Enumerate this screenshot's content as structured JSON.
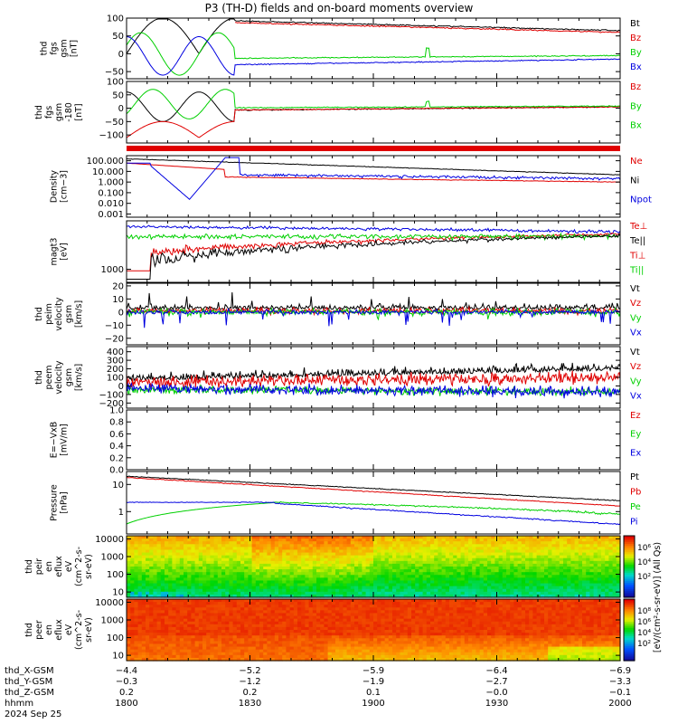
{
  "title": "P3 (TH-D) fields and on-board moments overview",
  "colors": {
    "black": "#000000",
    "red": "#e00000",
    "green": "#00d000",
    "blue": "#0000e0"
  },
  "chart_data": [
    {
      "type": "line",
      "ylabel": [
        "thd",
        "fgs",
        "gsm",
        "[nT]"
      ],
      "yticks": [
        "100",
        "50",
        "0",
        "−50"
      ],
      "ylim": [
        -70,
        100
      ],
      "legend": [
        {
          "text": "Bt",
          "color": "#000000"
        },
        {
          "text": "Bz",
          "color": "#e00000"
        },
        {
          "text": "By",
          "color": "#00d000"
        },
        {
          "text": "Bx",
          "color": "#0000e0"
        }
      ]
    },
    {
      "type": "line",
      "ylabel": [
        "thd",
        "fgs",
        "gsm",
        "-180",
        "[nT]"
      ],
      "yticks": [
        "100",
        "50",
        "0",
        "−50",
        "−100"
      ],
      "ylim": [
        -130,
        100
      ],
      "legend": [
        {
          "text": "Bz",
          "color": "#e00000"
        },
        {
          "text": "By",
          "color": "#00d000"
        },
        {
          "text": "Bx",
          "color": "#00d000"
        }
      ]
    },
    {
      "type": "line",
      "ylabel": [
        "Density",
        "[cm−3]"
      ],
      "yticks": [
        "100.000",
        "10.000",
        "1.000",
        "0.100",
        "0.010",
        "0.001"
      ],
      "ylim": [
        0.0005,
        300
      ],
      "scale": "log",
      "legend": [
        {
          "text": "Ne",
          "color": "#e00000"
        },
        {
          "text": "Ni",
          "color": "#000000"
        },
        {
          "text": "Npot",
          "color": "#0000e0"
        }
      ]
    },
    {
      "type": "line",
      "ylabel": [
        "magt3",
        "[eV]"
      ],
      "yticks": [
        "1000"
      ],
      "ylim": [
        400,
        30000
      ],
      "scale": "log",
      "legend": [
        {
          "text": "Te⊥",
          "color": "#e00000"
        },
        {
          "text": "Te||",
          "color": "#000000"
        },
        {
          "text": "Ti⊥",
          "color": "#e00000"
        },
        {
          "text": "Ti||",
          "color": "#00d000"
        }
      ]
    },
    {
      "type": "line",
      "ylabel": [
        "thd",
        "peim",
        "velocity",
        "gsm",
        "[km/s]"
      ],
      "yticks": [
        "20",
        "10",
        "0",
        "−10",
        "−20"
      ],
      "ylim": [
        -25,
        22
      ],
      "legend": [
        {
          "text": "Vt",
          "color": "#000000"
        },
        {
          "text": "Vz",
          "color": "#e00000"
        },
        {
          "text": "Vy",
          "color": "#00d000"
        },
        {
          "text": "Vx",
          "color": "#0000e0"
        }
      ]
    },
    {
      "type": "line",
      "ylabel": [
        "thd",
        "peem",
        "velocity",
        "gsm",
        "[km/s]"
      ],
      "yticks": [
        "400",
        "300",
        "200",
        "100",
        "0",
        "−100",
        "−200"
      ],
      "ylim": [
        -260,
        460
      ],
      "legend": [
        {
          "text": "Vt",
          "color": "#000000"
        },
        {
          "text": "Vz",
          "color": "#e00000"
        },
        {
          "text": "Vy",
          "color": "#00d000"
        },
        {
          "text": "Vx",
          "color": "#0000e0"
        }
      ]
    },
    {
      "type": "line",
      "ylabel": [
        "E=−VxB",
        "[mV/m]"
      ],
      "yticks": [
        "1.0",
        "0.8",
        "0.6",
        "0.4",
        "0.2",
        "0.0"
      ],
      "ylim": [
        0,
        1
      ],
      "legend": [
        {
          "text": "Ez",
          "color": "#e00000"
        },
        {
          "text": "Ey",
          "color": "#00d000"
        },
        {
          "text": "Ex",
          "color": "#0000e0"
        }
      ]
    },
    {
      "type": "line",
      "ylabel": [
        "Pressure",
        "[nPa]"
      ],
      "yticks": [
        "10",
        "1"
      ],
      "ylim": [
        0.15,
        30
      ],
      "scale": "log",
      "legend": [
        {
          "text": "Pt",
          "color": "#000000"
        },
        {
          "text": "Pb",
          "color": "#e00000"
        },
        {
          "text": "Pe",
          "color": "#00d000"
        },
        {
          "text": "Pi",
          "color": "#0000e0"
        }
      ]
    },
    {
      "type": "heatmap",
      "ylabel": [
        "thd",
        "peir",
        "en",
        "eflux",
        "eV",
        "(cm^2-s-",
        "sr-eV)"
      ],
      "yticks": [
        "10000",
        "1000",
        "100",
        "10"
      ],
      "ylim": [
        5,
        15000
      ],
      "scale": "log"
    },
    {
      "type": "heatmap",
      "ylabel": [
        "thd",
        "peer",
        "en",
        "eflux",
        "eV",
        "(cm^2-s-",
        "sr-eV)"
      ],
      "yticks": [
        "10000",
        "1000",
        "100",
        "10"
      ],
      "ylim": [
        5,
        15000
      ],
      "scale": "log"
    }
  ],
  "colorbar": {
    "label": "[eV/(cm²-s-sr-eV)] (All Qs)",
    "top_ticks": [
      "10⁶",
      "10⁴",
      "10²"
    ],
    "bottom_ticks": [
      "10⁸",
      "10⁶",
      "10⁴",
      "10²"
    ]
  },
  "footer": {
    "labels": [
      "thd_X-GSM",
      "thd_Y-GSM",
      "thd_Z-GSM",
      "hhmm",
      "2024 Sep 25"
    ],
    "columns": [
      {
        "x": "-4.4",
        "y": "-0.3",
        "z": "0.2",
        "t": "1800"
      },
      {
        "x": "-5.2",
        "y": "-1.2",
        "z": "0.2",
        "t": "1830"
      },
      {
        "x": "-5.9",
        "y": "-1.9",
        "z": "0.1",
        "t": "1900"
      },
      {
        "x": "-6.4",
        "y": "-2.7",
        "z": "-0.0",
        "t": "1930"
      },
      {
        "x": "-6.9",
        "y": "-3.3",
        "z": "-0.1",
        "t": "2000"
      }
    ]
  }
}
